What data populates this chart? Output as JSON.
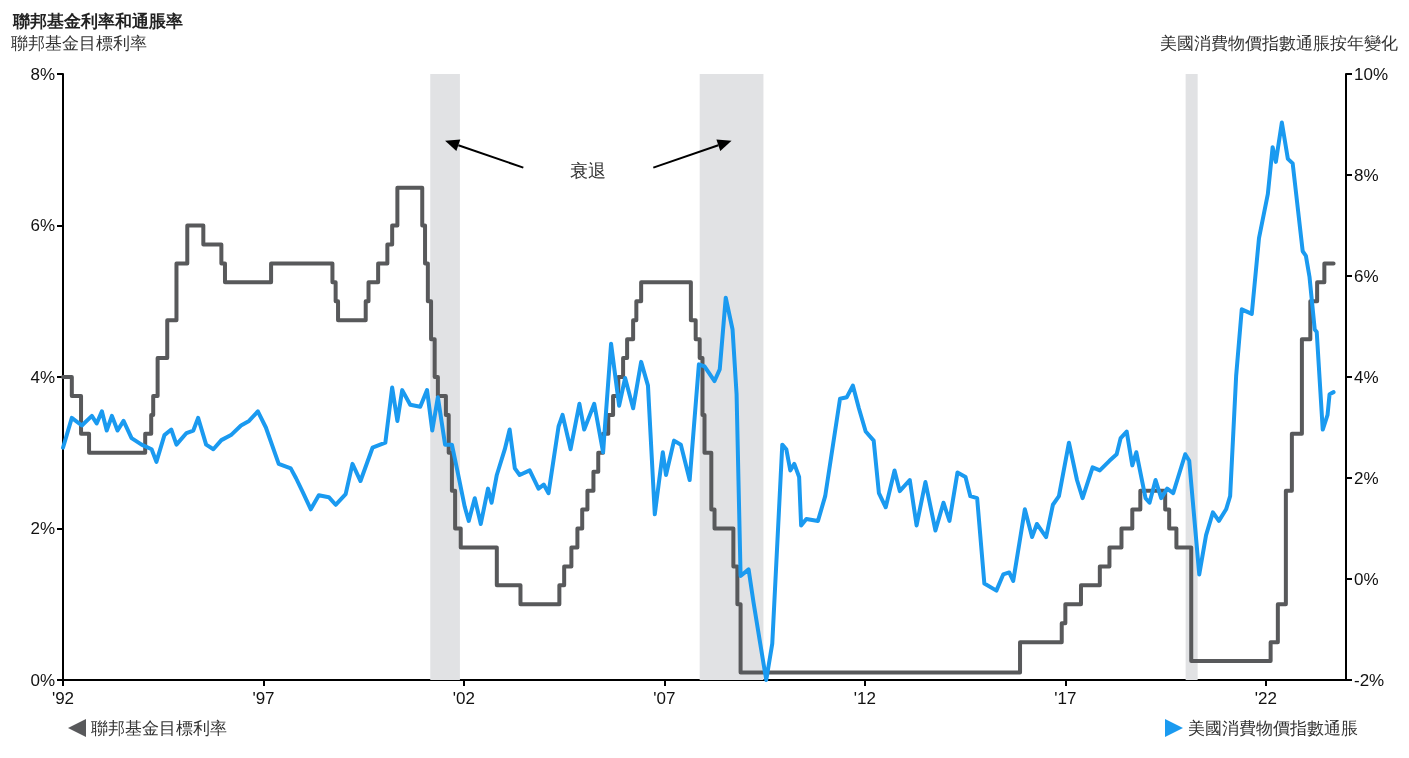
{
  "chart_data": {
    "type": "line",
    "title": "聯邦基金利率和通脹率",
    "ylabel": "聯邦基金目標利率",
    "y2label": "美國消費物價指數通脹按年變化",
    "xlim": [
      1992,
      2024
    ],
    "xticks": [
      {
        "value": 1992,
        "label": "'92"
      },
      {
        "value": 1997,
        "label": "'97"
      },
      {
        "value": 2002,
        "label": "'02"
      },
      {
        "value": 2007,
        "label": "'07"
      },
      {
        "value": 2012,
        "label": "'12"
      },
      {
        "value": 2017,
        "label": "'17"
      },
      {
        "value": 2022,
        "label": "'22"
      }
    ],
    "ylim": [
      0,
      8
    ],
    "yticks": [
      {
        "value": 0,
        "label": "0%"
      },
      {
        "value": 2,
        "label": "2%"
      },
      {
        "value": 4,
        "label": "4%"
      },
      {
        "value": 6,
        "label": "6%"
      },
      {
        "value": 8,
        "label": "8%"
      }
    ],
    "y2lim": [
      -2,
      10
    ],
    "y2ticks": [
      {
        "value": -2,
        "label": "-2%"
      },
      {
        "value": 0,
        "label": "0%"
      },
      {
        "value": 2,
        "label": "2%"
      },
      {
        "value": 4,
        "label": "4%"
      },
      {
        "value": 6,
        "label": "6%"
      },
      {
        "value": 8,
        "label": "8%"
      },
      {
        "value": 10,
        "label": "10%"
      }
    ],
    "grid": false,
    "legend": "bottom",
    "marker": "none",
    "line_style": "solid",
    "bands": [
      {
        "axis": "x",
        "from": 2001.16,
        "to": 2001.9,
        "color": "#e1e2e4"
      },
      {
        "axis": "x",
        "from": 2007.88,
        "to": 2009.47,
        "color": "#e1e2e4"
      },
      {
        "axis": "x",
        "from": 2020.0,
        "to": 2020.3,
        "color": "#e1e2e4"
      }
    ],
    "annotations": [
      "衰退"
    ],
    "series": [
      {
        "name": "聯邦基金目標利率",
        "type": "step",
        "color": "#58595b",
        "x": [
          1992,
          1992.22,
          1992.45,
          1992.65,
          1994.05,
          1994.2,
          1994.25,
          1994.36,
          1994.6,
          1994.83,
          1995.1,
          1995.5,
          1995.95,
          1996.04,
          1997.19,
          1998.72,
          1998.8,
          1998.86,
          1999.55,
          1999.62,
          1999.86,
          2000.09,
          2000.21,
          2000.34,
          2000.96,
          2001.03,
          2001.1,
          2001.18,
          2001.27,
          2001.35,
          2001.55,
          2001.62,
          2001.7,
          2001.78,
          2001.92,
          2002.82,
          2003.41,
          2004.38,
          2004.5,
          2004.68,
          2004.83,
          2004.95,
          2005.08,
          2005.23,
          2005.35,
          2005.47,
          2005.6,
          2005.72,
          2005.85,
          2005.97,
          2006.07,
          2006.22,
          2006.3,
          2006.42,
          2007.66,
          2007.78,
          2007.88,
          2007.95,
          2008.0,
          2008.17,
          2008.25,
          2008.72,
          2008.82,
          2008.9,
          2015.87,
          2016.91,
          2017.0,
          2017.39,
          2017.86,
          2018.1,
          2018.4,
          2018.67,
          2018.87,
          2019.49,
          2019.59,
          2019.77,
          2020.14,
          2022.12,
          2022.3,
          2022.5,
          2022.65,
          2022.9,
          2023.11,
          2023.28,
          2023.46,
          2023.69
        ],
        "values": [
          4.0,
          3.75,
          3.25,
          3.0,
          3.25,
          3.5,
          3.75,
          4.25,
          4.75,
          5.5,
          6.0,
          5.75,
          5.5,
          5.25,
          5.5,
          5.25,
          5.0,
          4.75,
          5.0,
          5.25,
          5.5,
          5.75,
          6.0,
          6.5,
          6.0,
          5.5,
          5.0,
          4.5,
          4.0,
          3.75,
          3.5,
          3.0,
          2.5,
          2.0,
          1.75,
          1.25,
          1.0,
          1.25,
          1.5,
          1.75,
          2.0,
          2.25,
          2.5,
          2.75,
          3.0,
          3.25,
          3.5,
          3.75,
          4.0,
          4.25,
          4.5,
          4.75,
          5.0,
          5.25,
          4.75,
          4.5,
          4.25,
          3.5,
          3.0,
          2.25,
          2.0,
          1.5,
          1.0,
          0.1,
          0.5,
          0.75,
          1.0,
          1.25,
          1.5,
          1.75,
          2.0,
          2.25,
          2.5,
          2.25,
          2.0,
          1.75,
          0.25,
          0.5,
          1.0,
          2.5,
          3.25,
          4.5,
          5.0,
          5.25,
          5.5,
          5.5
        ]
      },
      {
        "name": "美國消費物價指數通脹",
        "axis": "y2",
        "color": "#1a9af0",
        "x": [
          1992.0,
          1992.22,
          1992.47,
          1992.72,
          1992.84,
          1992.97,
          1993.09,
          1993.22,
          1993.36,
          1993.51,
          1993.71,
          1993.96,
          1994.21,
          1994.33,
          1994.53,
          1994.7,
          1994.83,
          1995.08,
          1995.25,
          1995.37,
          1995.57,
          1995.75,
          1995.95,
          1996.19,
          1996.44,
          1996.64,
          1996.86,
          1997.06,
          1997.38,
          1997.68,
          1997.81,
          1997.98,
          1998.18,
          1998.38,
          1998.63,
          1998.8,
          1999.05,
          1999.22,
          1999.42,
          1999.72,
          2000.04,
          2000.21,
          2000.34,
          2000.46,
          2000.66,
          2000.91,
          2001.08,
          2001.21,
          2001.35,
          2001.53,
          2001.7,
          2001.85,
          2002.02,
          2002.12,
          2002.27,
          2002.42,
          2002.6,
          2002.69,
          2002.82,
          2003.02,
          2003.14,
          2003.27,
          2003.39,
          2003.64,
          2003.86,
          2003.99,
          2004.11,
          2004.36,
          2004.46,
          2004.66,
          2004.88,
          2005.0,
          2005.25,
          2005.47,
          2005.67,
          2005.87,
          2006.02,
          2006.22,
          2006.42,
          2006.59,
          2006.76,
          2006.96,
          2007.04,
          2007.24,
          2007.41,
          2007.63,
          2007.86,
          2008.0,
          2008.25,
          2008.38,
          2008.53,
          2008.7,
          2008.8,
          2008.9,
          2009.1,
          2009.22,
          2009.39,
          2009.54,
          2009.69,
          2009.94,
          2010.04,
          2010.14,
          2010.24,
          2010.36,
          2010.41,
          2010.54,
          2010.83,
          2011.01,
          2011.38,
          2011.55,
          2011.7,
          2011.85,
          2012.02,
          2012.22,
          2012.35,
          2012.52,
          2012.74,
          2012.87,
          2013.12,
          2013.29,
          2013.51,
          2013.76,
          2013.96,
          2014.11,
          2014.31,
          2014.51,
          2014.63,
          2014.8,
          2014.98,
          2015.28,
          2015.45,
          2015.6,
          2015.7,
          2015.99,
          2016.17,
          2016.29,
          2016.52,
          2016.69,
          2016.84,
          2017.09,
          2017.29,
          2017.43,
          2017.68,
          2017.86,
          2018.1,
          2018.28,
          2018.38,
          2018.53,
          2018.67,
          2018.77,
          2019.0,
          2019.1,
          2019.25,
          2019.39,
          2019.54,
          2019.69,
          2019.99,
          2020.09,
          2020.34,
          2020.51,
          2020.68,
          2020.83,
          2021.01,
          2021.11,
          2021.26,
          2021.4,
          2021.65,
          2021.83,
          2022.05,
          2022.17,
          2022.25,
          2022.4,
          2022.55,
          2022.67,
          2022.92,
          2023.0,
          2023.09,
          2023.22,
          2023.27,
          2023.42,
          2023.54,
          2023.59,
          2023.69
        ],
        "values": [
          2.6,
          3.19,
          3.04,
          3.23,
          3.08,
          3.32,
          2.94,
          3.23,
          2.94,
          3.13,
          2.79,
          2.66,
          2.57,
          2.32,
          2.85,
          2.96,
          2.66,
          2.89,
          2.94,
          3.19,
          2.66,
          2.57,
          2.75,
          2.85,
          3.04,
          3.13,
          3.32,
          3.0,
          2.28,
          2.19,
          2.0,
          1.72,
          1.38,
          1.66,
          1.62,
          1.47,
          1.68,
          2.28,
          1.94,
          2.6,
          2.7,
          3.79,
          3.13,
          3.74,
          3.45,
          3.41,
          3.74,
          2.94,
          3.6,
          2.66,
          2.66,
          2.09,
          1.43,
          1.15,
          1.6,
          1.09,
          1.79,
          1.51,
          2.06,
          2.57,
          2.96,
          2.19,
          2.06,
          2.15,
          1.79,
          1.87,
          1.7,
          3.02,
          3.25,
          2.57,
          3.47,
          2.96,
          3.47,
          2.51,
          4.66,
          3.43,
          3.98,
          3.38,
          4.3,
          3.83,
          1.28,
          2.51,
          2.06,
          2.74,
          2.66,
          1.96,
          4.25,
          4.21,
          3.92,
          4.15,
          5.57,
          4.94,
          3.66,
          0.06,
          0.19,
          -0.45,
          -1.28,
          -2.0,
          -1.28,
          2.66,
          2.57,
          2.15,
          2.28,
          2.02,
          1.06,
          1.19,
          1.15,
          1.64,
          3.57,
          3.6,
          3.83,
          3.38,
          2.92,
          2.74,
          1.7,
          1.42,
          2.15,
          1.74,
          1.96,
          1.06,
          1.92,
          0.96,
          1.51,
          1.15,
          2.11,
          2.02,
          1.64,
          1.6,
          -0.09,
          -0.23,
          0.09,
          0.13,
          -0.04,
          1.38,
          0.83,
          1.09,
          0.83,
          1.47,
          1.64,
          2.7,
          1.96,
          1.6,
          2.21,
          2.15,
          2.34,
          2.47,
          2.79,
          2.92,
          2.25,
          2.51,
          1.6,
          1.51,
          1.96,
          1.6,
          1.79,
          1.7,
          2.47,
          2.34,
          0.09,
          0.87,
          1.32,
          1.15,
          1.38,
          1.64,
          4.02,
          5.34,
          5.25,
          6.75,
          7.62,
          8.55,
          8.26,
          9.04,
          8.32,
          8.23,
          6.49,
          6.4,
          5.98,
          4.94,
          4.89,
          2.96,
          3.25,
          3.66,
          3.7
        ]
      }
    ]
  }
}
